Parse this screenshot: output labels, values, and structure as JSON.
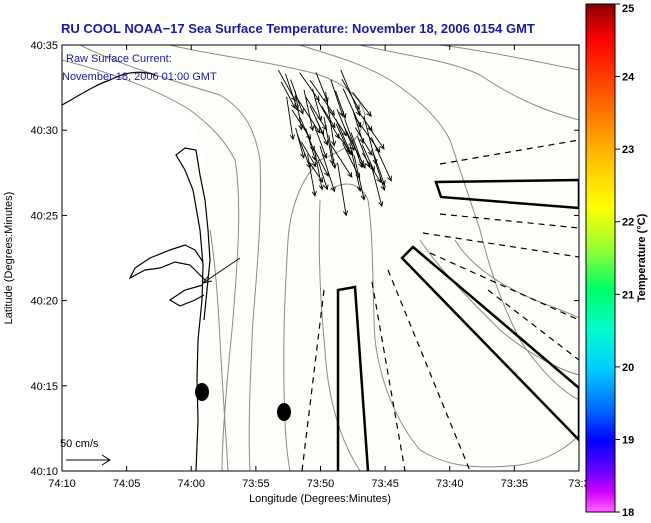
{
  "title": "RU COOL  NOAA−17  Sea Surface Temperature:  November 18, 2006 0154 GMT",
  "current_label": [
    "Raw Surface Current:",
    "November 18, 2006 01:00 GMT"
  ],
  "scale_label": "50 cm/s",
  "axes": {
    "xlabel": "Longitude (Degrees:Minutes)",
    "ylabel": "Latitude (Degrees:Minutes)",
    "x_ticks": [
      "74:10",
      "74:05",
      "74:00",
      "73:55",
      "73:50",
      "73:45",
      "73:40",
      "73:35",
      "73:3"
    ],
    "y_ticks": [
      "40:35",
      "40:30",
      "40:25",
      "40:20",
      "40:15",
      "40:10"
    ]
  },
  "colorbar": {
    "label": "Temperature (°C)",
    "ticks": [
      "25",
      "24",
      "23",
      "22",
      "21",
      "20",
      "19",
      "18"
    ]
  },
  "colors": {
    "title": "#1a1aa0",
    "annotation": "#1a1aa0",
    "land_fill": "#ffffff",
    "ocean_fill": "#fdfdfa",
    "bathy": "#8a8a8a",
    "coast": "#000000"
  }
}
